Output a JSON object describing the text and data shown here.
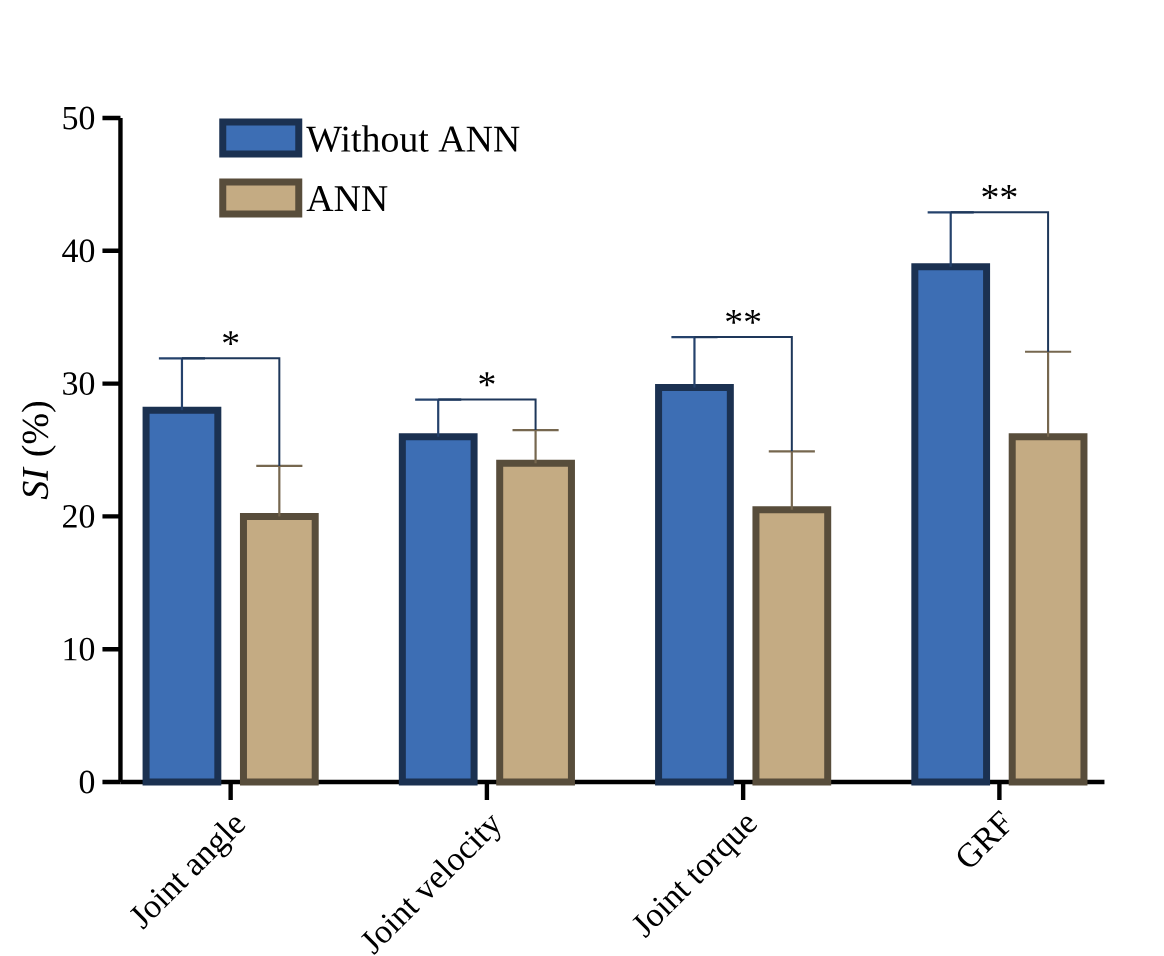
{
  "chart_data": {
    "type": "bar",
    "ylabel": "*SI* (%)",
    "categories": [
      "Joint angle",
      "Joint velocity",
      "Joint torque",
      "GRF"
    ],
    "series": [
      {
        "name": "Without ANN",
        "color": "#3d6eb4",
        "values": [
          28,
          26,
          29.7,
          38.8
        ],
        "errors": [
          [
            28,
            31.9
          ],
          [
            26,
            28.8
          ],
          [
            29.7,
            33.5
          ],
          [
            38.8,
            42.9
          ]
        ]
      },
      {
        "name": "ANN",
        "color": "#c4ab83",
        "values": [
          20,
          24,
          20.5,
          26
        ],
        "errors": [
          [
            20,
            23.8
          ],
          [
            24,
            26.5
          ],
          [
            20.5,
            24.9
          ],
          [
            26,
            32.4
          ]
        ]
      }
    ],
    "ylim": [
      0,
      50
    ],
    "yticks": [
      0,
      10,
      20,
      30,
      40,
      50
    ],
    "legend": "top left",
    "grid": false,
    "annotations": [
      {
        "text": "*",
        "x": "Joint angle",
        "y": 31.9
      },
      {
        "text": "*",
        "x": "Joint velocity",
        "y": 28.8
      },
      {
        "text": "**",
        "x": "Joint torque",
        "y": 33.5
      },
      {
        "text": "**",
        "x": "GRF",
        "y": 42.9
      }
    ]
  }
}
